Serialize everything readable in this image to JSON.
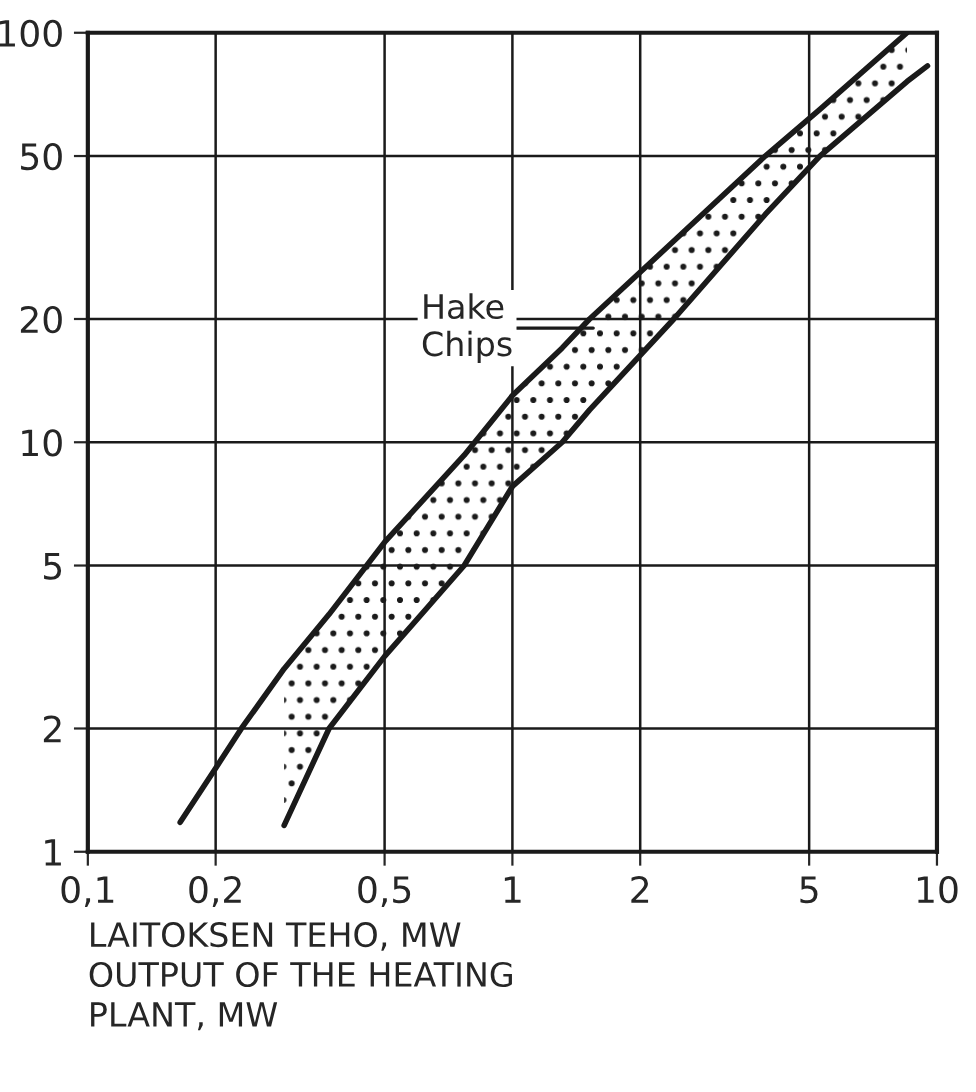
{
  "chart_data": {
    "type": "line",
    "xlabel": "LAITOKSEN TEHO, MW\nOUTPUT OF THE HEATING\nPLANT, MW",
    "log": "xy",
    "grid": true,
    "xlim": [
      0.1,
      10
    ],
    "ylim": [
      1,
      100
    ],
    "xticks": [
      {
        "value": 0.1,
        "label": "0,1"
      },
      {
        "value": 0.2,
        "label": "0,2"
      },
      {
        "value": 0.5,
        "label": "0,5"
      },
      1,
      2,
      5,
      10
    ],
    "yticks": [
      1,
      2,
      5,
      10,
      20,
      50,
      100
    ],
    "series": [
      {
        "color": "#1a1a1a",
        "x": [
          0.165,
          0.2,
          0.23,
          0.29,
          0.37,
          0.5,
          0.77,
          1,
          1.31,
          1.52,
          2.4,
          3.94,
          5.3,
          8.5
        ],
        "values": [
          1.18,
          1.6,
          2,
          2.8,
          3.8,
          5.7,
          9.3,
          13,
          17,
          20,
          31,
          50,
          65,
          100
        ],
        "upper": [
          null,
          null,
          null,
          2.8,
          3.8,
          5.7,
          9.3,
          13,
          17,
          20,
          31,
          50,
          65,
          100
        ],
        "lower": [
          null,
          null,
          null,
          1.16,
          2,
          3,
          5,
          7.8,
          10,
          12,
          20,
          36,
          50,
          76
        ]
      },
      {
        "color": "#1a1a1a",
        "x": [
          0.29,
          0.37,
          0.5,
          0.77,
          1,
          1.31,
          1.52,
          2.4,
          3.94,
          5.3,
          8.5,
          9.5
        ],
        "values": [
          1.16,
          2,
          3,
          5,
          7.8,
          10,
          12,
          20,
          36,
          50,
          76,
          83
        ]
      }
    ],
    "legend": false,
    "annotations": [
      {
        "text": "Hake\nChips",
        "x": 1.55,
        "y": 19
      }
    ]
  }
}
